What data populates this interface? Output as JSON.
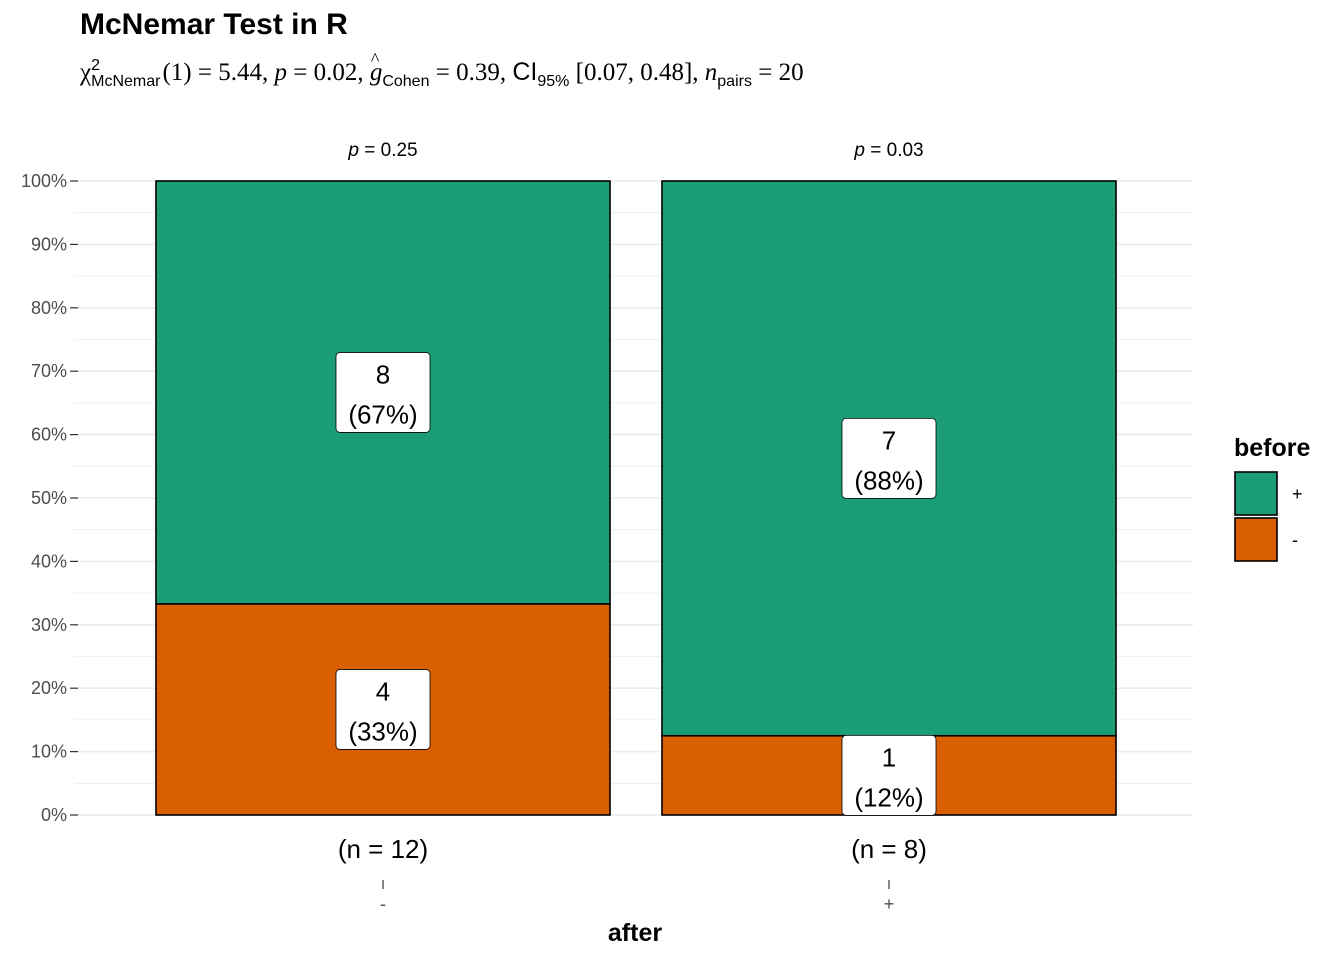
{
  "title": "McNemar Test in R",
  "subtitle": {
    "stat_symbol": "χ",
    "stat_sup": "2",
    "stat_sub": "McNemar",
    "df": "(1)",
    "stat_value": "= 5.44,",
    "p_symbol": "p",
    "p_value": "= 0.02,",
    "effect_symbol": "g",
    "effect_sub": "Cohen",
    "effect_value": "= 0.39,",
    "ci_label": "CI",
    "ci_sub": "95%",
    "ci_value": "[0.07, 0.48],",
    "n_symbol": "n",
    "n_sub": "pairs",
    "n_value": "= 20"
  },
  "colors": {
    "plus": "#1B9E77",
    "minus": "#D95F02",
    "grid": "#EBEBEB"
  },
  "chart_data": {
    "type": "bar",
    "stacked": true,
    "percent": true,
    "xlabel": "after",
    "ylabel": "",
    "ylim": [
      0,
      100
    ],
    "y_ticks": [
      "0%",
      "10%",
      "20%",
      "30%",
      "40%",
      "50%",
      "60%",
      "70%",
      "80%",
      "90%",
      "100%"
    ],
    "legend": {
      "title": "before",
      "position": "right",
      "entries": [
        "+",
        "-"
      ]
    },
    "categories": [
      "-",
      "+"
    ],
    "sample_sizes": [
      "(n = 12)",
      "(n = 8)"
    ],
    "p_labels": [
      "= 0.25",
      "= 0.03"
    ],
    "series": [
      {
        "name": "-",
        "counts": [
          4,
          1
        ],
        "percents": [
          33.3,
          12.5
        ],
        "labels": [
          "(33%)",
          "(12%)"
        ]
      },
      {
        "name": "+",
        "counts": [
          8,
          7
        ],
        "percents": [
          66.7,
          87.5
        ],
        "labels": [
          "(67%)",
          "(88%)"
        ]
      }
    ]
  }
}
